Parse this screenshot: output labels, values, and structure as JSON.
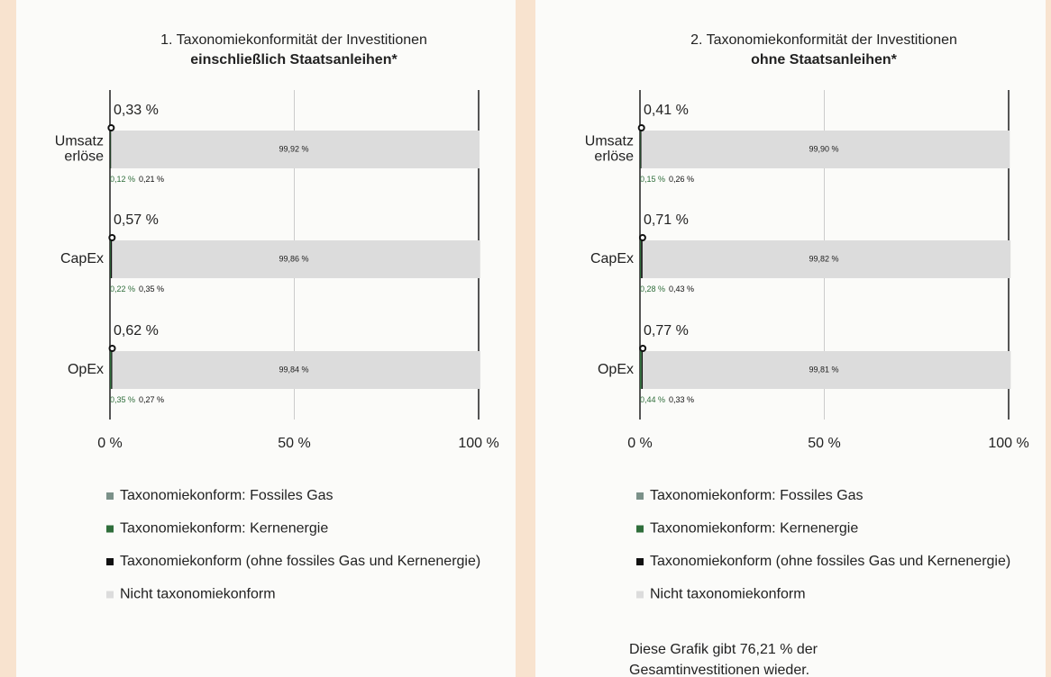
{
  "chart_data": [
    {
      "type": "stacked-bar-horizontal",
      "title": [
        "1. Taxonomiekonformität der Investitionen",
        "einschließlich Staatsanleihen*"
      ],
      "categories": [
        [
          "Umsatz",
          "erlöse"
        ],
        [
          "CapEx"
        ],
        [
          "OpEx"
        ]
      ],
      "series": [
        {
          "name": "Taxonomiekonform: Fossiles Gas",
          "color": "#7b9189",
          "values": [
            0,
            0,
            0
          ]
        },
        {
          "name": "Taxonomiekonform: Kernenergie",
          "color": "#2f6e3b",
          "values": [
            0.12,
            0.22,
            0.35
          ],
          "value_labels": [
            "0,12 %",
            "0,22 %",
            "0,35 %"
          ]
        },
        {
          "name": "Taxonomiekonform (ohne fossiles Gas und Kernenergie)",
          "color": "#111111",
          "values": [
            0.21,
            0.35,
            0.27
          ],
          "value_labels": [
            "0,21 %",
            "0,35 %",
            "0,27 %"
          ]
        },
        {
          "name": "Nicht taxonomiekonform",
          "color": "#dcdcdc",
          "values": [
            99.92,
            99.86,
            99.84
          ],
          "value_labels": [
            "99,92 %",
            "99,86 %",
            "99,84 %"
          ]
        }
      ],
      "totals": {
        "values": [
          0.33,
          0.57,
          0.62
        ],
        "value_labels": [
          "0,33 %",
          "0,57 %",
          "0,62 %"
        ]
      },
      "xlim": [
        0,
        100
      ],
      "xticks": [
        {
          "value": 0,
          "label": "0 %"
        },
        {
          "value": 50,
          "label": "50 %"
        },
        {
          "value": 100,
          "label": "100 %"
        }
      ],
      "grid": true
    },
    {
      "type": "stacked-bar-horizontal",
      "title": [
        "2. Taxonomiekonformität der Investitionen",
        "ohne Staatsanleihen*"
      ],
      "categories": [
        [
          "Umsatz",
          "erlöse"
        ],
        [
          "CapEx"
        ],
        [
          "OpEx"
        ]
      ],
      "series": [
        {
          "name": "Taxonomiekonform: Fossiles Gas",
          "color": "#7b9189",
          "values": [
            0,
            0,
            0
          ]
        },
        {
          "name": "Taxonomiekonform: Kernenergie",
          "color": "#2f6e3b",
          "values": [
            0.15,
            0.28,
            0.44
          ],
          "value_labels": [
            "0,15 %",
            "0,28 %",
            "0,44 %"
          ]
        },
        {
          "name": "Taxonomiekonform (ohne fossiles Gas und Kernenergie)",
          "color": "#111111",
          "values": [
            0.26,
            0.43,
            0.33
          ],
          "value_labels": [
            "0,26 %",
            "0,43 %",
            "0,33 %"
          ]
        },
        {
          "name": "Nicht taxonomiekonform",
          "color": "#dcdcdc",
          "values": [
            99.9,
            99.82,
            99.81
          ],
          "value_labels": [
            "99,90 %",
            "99,82 %",
            "99,81 %"
          ]
        }
      ],
      "totals": {
        "values": [
          0.41,
          0.71,
          0.77
        ],
        "value_labels": [
          "0,41 %",
          "0,71 %",
          "0,77 %"
        ]
      },
      "xlim": [
        0,
        100
      ],
      "xticks": [
        {
          "value": 0,
          "label": "0 %"
        },
        {
          "value": 50,
          "label": "50 %"
        },
        {
          "value": 100,
          "label": "100 %"
        }
      ],
      "grid": true,
      "note": [
        "Diese Grafik gibt 76,21 % der",
        "Gesamtinvestitionen wieder."
      ]
    }
  ]
}
